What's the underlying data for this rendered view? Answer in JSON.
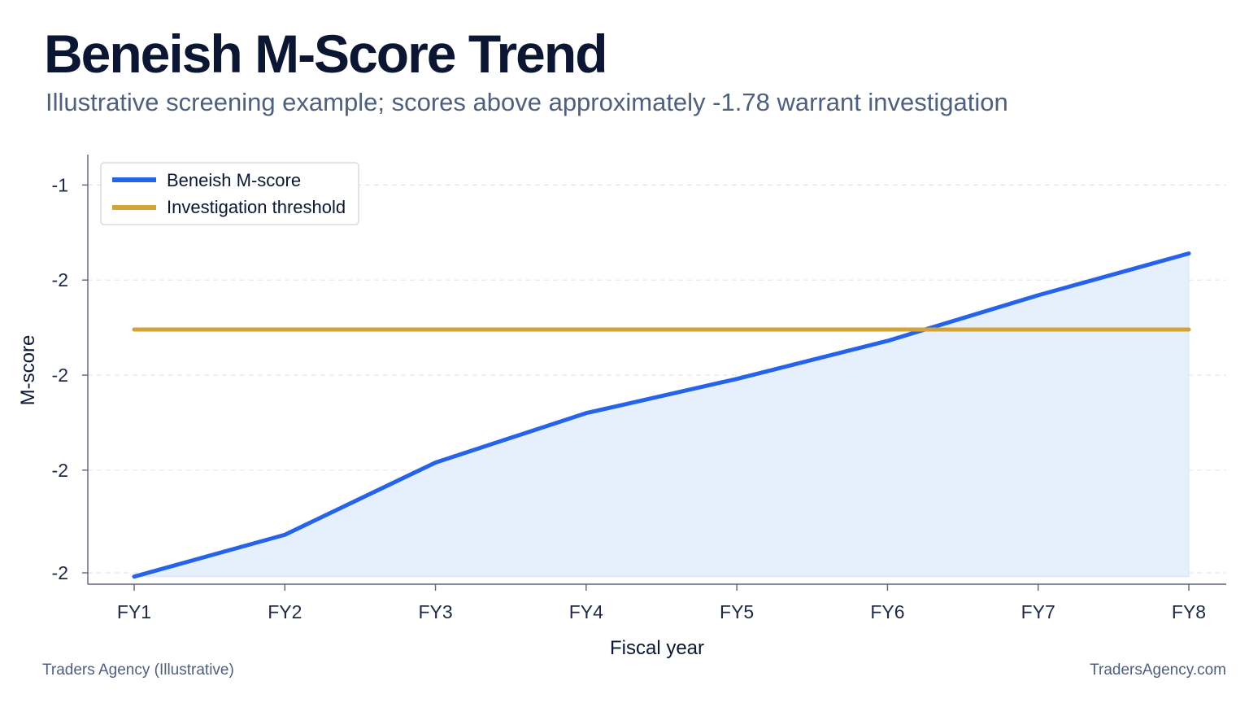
{
  "header": {
    "title": "Beneish M-Score Trend",
    "subtitle": "Illustrative screening example; scores above approximately -1.78 warrant investigation"
  },
  "footer": {
    "left": "Traders Agency (Illustrative)",
    "right": "TradersAgency.com"
  },
  "colors": {
    "mscore": "#2563eb",
    "mscore_fill": "#e6effc",
    "threshold": "#d4a338",
    "grid": "#e2e6ec",
    "axis": "#5b6478"
  },
  "chart_data": {
    "type": "line",
    "title": "Beneish M-Score Trend",
    "subtitle": "Illustrative screening example; scores above approximately -1.78 warrant investigation",
    "xlabel": "Fiscal year",
    "ylabel": "M-score",
    "categories": [
      "FY1",
      "FY2",
      "FY3",
      "FY4",
      "FY5",
      "FY6",
      "FY7",
      "FY8"
    ],
    "ylim": [
      -2.45,
      -1.32
    ],
    "yticks": [
      -1.4,
      -1.65,
      -1.9,
      -2.15,
      -2.42
    ],
    "ytick_labels": [
      "-1",
      "-2",
      "-2",
      "-2",
      "-2"
    ],
    "grid": "horizontal dashed",
    "legend_position": "top-left",
    "series": [
      {
        "name": "Beneish M-score",
        "values": [
          -2.43,
          -2.32,
          -2.13,
          -2.0,
          -1.91,
          -1.81,
          -1.69,
          -1.58
        ],
        "fill": true
      },
      {
        "name": "Investigation threshold",
        "values": [
          -1.78,
          -1.78,
          -1.78,
          -1.78,
          -1.78,
          -1.78,
          -1.78,
          -1.78
        ],
        "fill": false
      }
    ]
  }
}
